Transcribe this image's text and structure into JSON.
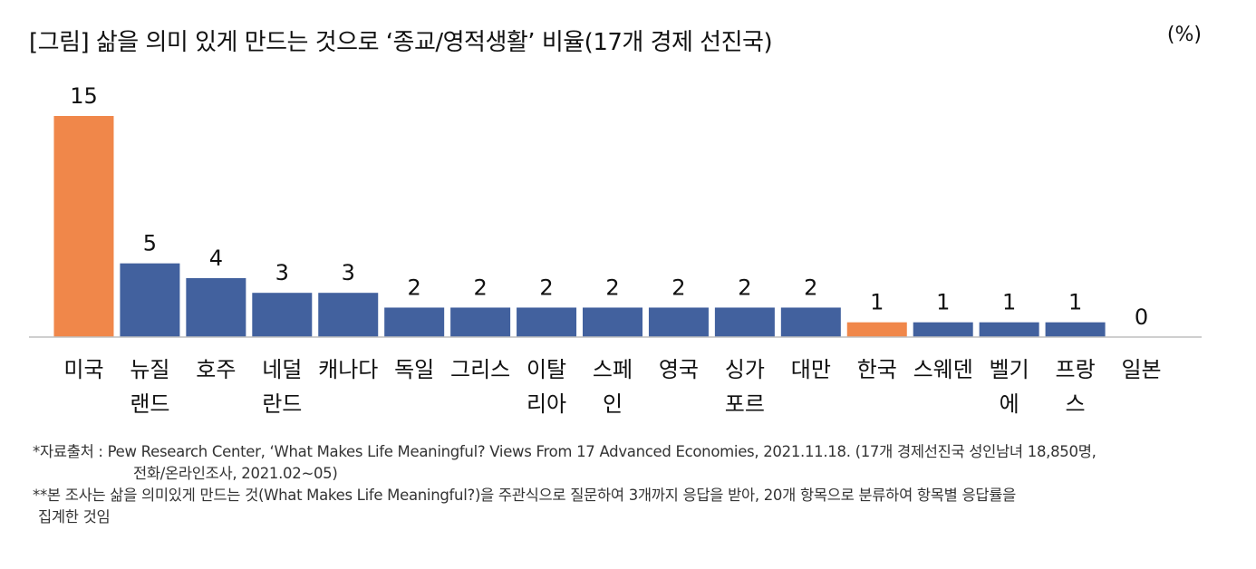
{
  "title": "[그림] 삶을 의미 있게 만드는 것으로 ‘종교/영적생활’ 비율(17개 경제 선진국)",
  "unit": "(%)",
  "colors": {
    "highlight": "#F0874A",
    "default": "#42619E",
    "baseline": "#bfbfbf",
    "label": "#111111"
  },
  "chart_data": {
    "type": "bar",
    "title": "[그림] 삶을 의미 있게 만드는 것으로 ‘종교/영적생활’ 비율(17개 경제 선진국)",
    "unit": "(%)",
    "categories": [
      [
        "미국"
      ],
      [
        "뉴질",
        "랜드"
      ],
      [
        "호주"
      ],
      [
        "네덜",
        "란드"
      ],
      [
        "캐나다"
      ],
      [
        "독일"
      ],
      [
        "그리스"
      ],
      [
        "이탈",
        "리아"
      ],
      [
        "스페",
        "인"
      ],
      [
        "영국"
      ],
      [
        "싱가",
        "포르"
      ],
      [
        "대만"
      ],
      [
        "한국"
      ],
      [
        "스웨덴"
      ],
      [
        "벨기",
        "에"
      ],
      [
        "프랑",
        "스"
      ],
      [
        "일본"
      ]
    ],
    "values": [
      15,
      5,
      4,
      3,
      3,
      2,
      2,
      2,
      2,
      2,
      2,
      2,
      1,
      1,
      1,
      1,
      0
    ],
    "highlighted": [
      "미국",
      "한국"
    ],
    "ylim": [
      0,
      15
    ],
    "grid": false,
    "legend": "none"
  },
  "notes": {
    "source": "*자료출처 : Pew Research Center, ‘What Makes Life Meaningful? Views From 17 Advanced Economies, 2021.11.18. (17개 경제선진국 성인남녀 18,850명,",
    "source_cont": "전화/온라인조사, 2021.02~05)",
    "note": "**본 조사는 삶을 의미있게 만드는 것(What Makes Life Meaningful?)을 주관식으로 질문하여 3개까지 응답을 받아, 20개 항목으로 분류하여 항목별 응답률을",
    "note_cont": "집계한 것임"
  }
}
